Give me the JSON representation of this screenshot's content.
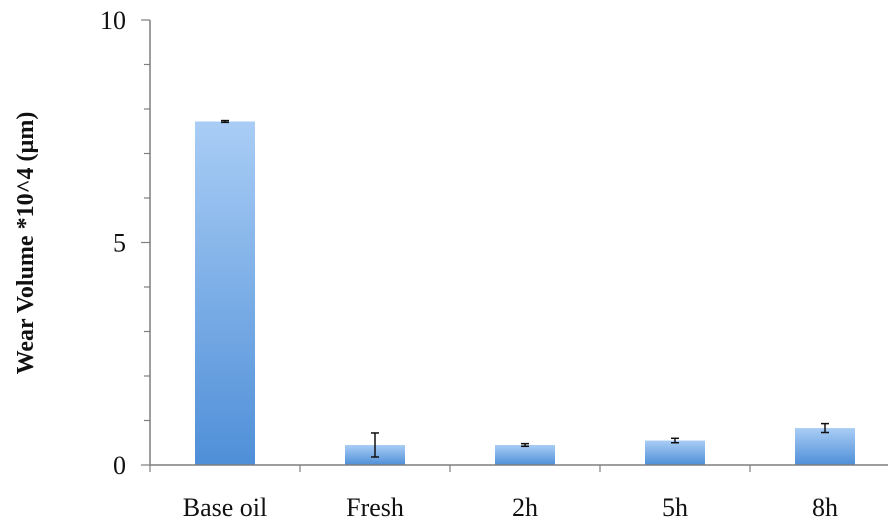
{
  "chart_data": {
    "type": "bar",
    "title": "",
    "xlabel": "",
    "ylabel": "Wear Volume *10^4 (µm)",
    "categories": [
      "Base oil",
      "Fresh",
      "2h",
      "5h",
      "8h"
    ],
    "values": [
      7.72,
      0.45,
      0.45,
      0.55,
      0.83
    ],
    "error": [
      0.02,
      0.27,
      0.03,
      0.05,
      0.1
    ],
    "ylim": [
      0,
      10
    ],
    "y_ticks": [
      "0",
      "5",
      "10"
    ],
    "grid": false,
    "legend": "none",
    "bar_color_top": "#a9cdf5",
    "bar_color_bottom": "#4f8fd8"
  }
}
